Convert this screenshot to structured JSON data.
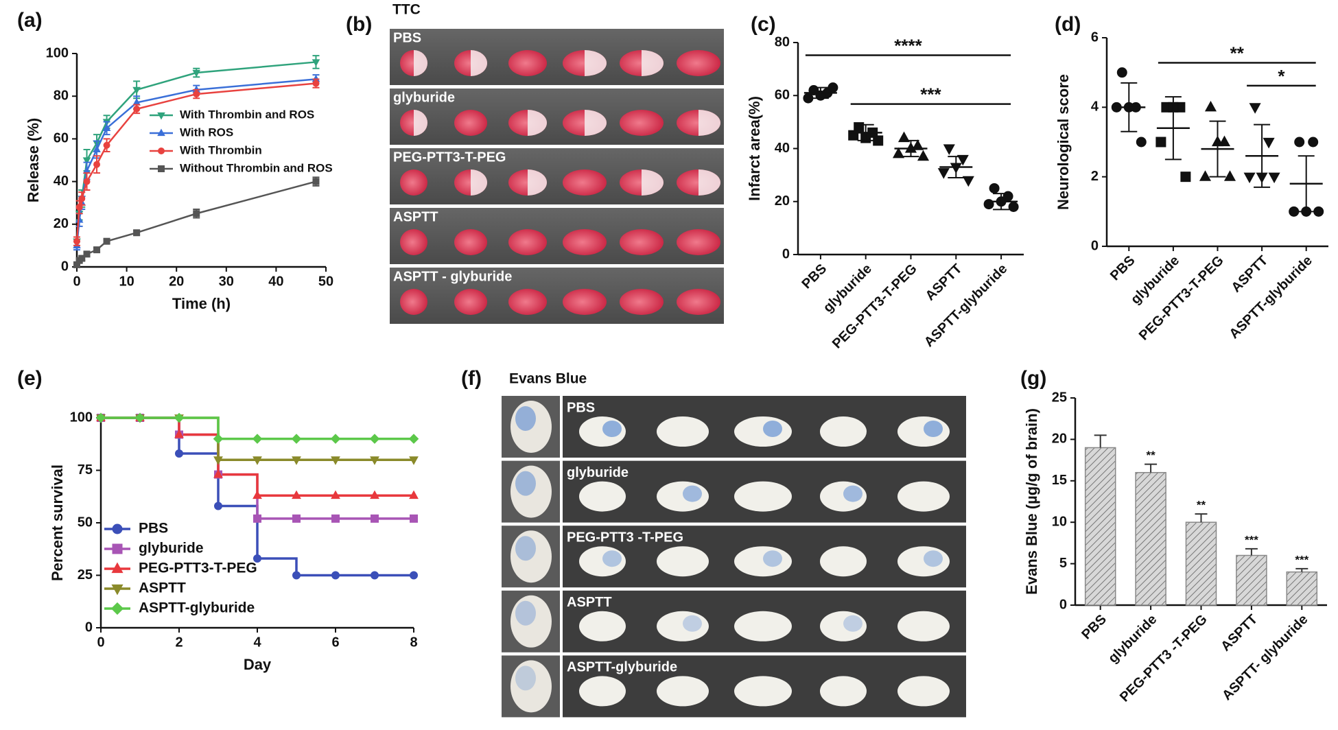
{
  "chart_data": [
    {
      "type": "line",
      "panel_label": "(a)",
      "xlabel": "Time (h)",
      "ylabel": "Release (%)",
      "x": [
        0,
        0.5,
        1,
        2,
        4,
        6,
        12,
        24,
        48
      ],
      "xlim": [
        0,
        50
      ],
      "xticks": [
        0,
        10,
        20,
        30,
        40,
        50
      ],
      "ylim": [
        0,
        100
      ],
      "yticks": [
        0,
        20,
        40,
        60,
        80,
        100
      ],
      "legend": "center right",
      "series": [
        {
          "name": "With Thrombin and ROS",
          "color": "#2fa37c",
          "marker": "triangle-down",
          "values": [
            12,
            25,
            32,
            50,
            58,
            68,
            83,
            91,
            96
          ],
          "errors": [
            2,
            3,
            4,
            5,
            4,
            3,
            4,
            2,
            3
          ]
        },
        {
          "name": "With ROS",
          "color": "#3a6fd8",
          "marker": "triangle",
          "values": [
            10,
            22,
            30,
            45,
            55,
            65,
            77,
            83,
            88
          ],
          "errors": [
            2,
            3,
            3,
            4,
            4,
            3,
            3,
            2,
            2
          ]
        },
        {
          "name": "With Thrombin",
          "color": "#e8423f",
          "marker": "circle",
          "values": [
            12,
            28,
            32,
            40,
            48,
            57,
            74,
            81,
            86
          ],
          "errors": [
            2,
            3,
            3,
            4,
            4,
            3,
            2,
            2,
            2
          ]
        },
        {
          "name": "Without Thrombin and ROS",
          "color": "#555555",
          "marker": "square",
          "values": [
            1,
            3,
            4,
            6,
            8,
            12,
            16,
            25,
            40
          ],
          "errors": [
            1,
            1,
            1,
            1,
            1,
            1,
            1,
            2,
            2
          ]
        }
      ]
    },
    {
      "type": "dot",
      "panel_label": "(c)",
      "ylabel": "Infarct area(%)",
      "categories": [
        "PBS",
        "glyburide",
        "PEG-PTT3-T-PEG",
        "ASPTT",
        "ASPTT-glyburide"
      ],
      "markers": [
        "circle",
        "square",
        "triangle",
        "triangle-down",
        "circle"
      ],
      "groups": [
        [
          62,
          61,
          60,
          59,
          63
        ],
        [
          48,
          46,
          44,
          45,
          43
        ],
        [
          44,
          41,
          40,
          38,
          37
        ],
        [
          40,
          36,
          33,
          31,
          28
        ],
        [
          25,
          22,
          20,
          19,
          18
        ]
      ],
      "means": [
        61,
        46,
        40,
        33,
        20
      ],
      "sds": [
        2,
        3,
        3,
        4,
        3
      ],
      "ylim": [
        0,
        80
      ],
      "yticks": [
        0,
        20,
        40,
        60,
        80
      ],
      "annotations": [
        "****",
        "***"
      ]
    },
    {
      "type": "dot",
      "panel_label": "(d)",
      "ylabel": "Neurological score",
      "categories": [
        "PBS",
        "glyburide",
        "PEG-PTT3-T-PEG",
        "ASPTT",
        "ASPTT-glyburide"
      ],
      "markers": [
        "circle",
        "square",
        "triangle",
        "triangle-down",
        "circle"
      ],
      "groups": [
        [
          5,
          4,
          4,
          4,
          3
        ],
        [
          4,
          4,
          4,
          3,
          2
        ],
        [
          4,
          3,
          3,
          2,
          2
        ],
        [
          4,
          3,
          2,
          2,
          2
        ],
        [
          3,
          3,
          1,
          1,
          1
        ]
      ],
      "means": [
        4,
        3.4,
        2.8,
        2.6,
        1.8
      ],
      "sds": [
        0.7,
        0.9,
        0.8,
        0.9,
        0.8
      ],
      "ylim": [
        0,
        6
      ],
      "yticks": [
        0,
        2,
        4,
        6
      ],
      "annotations": [
        "**",
        "*"
      ]
    },
    {
      "type": "step",
      "panel_label": "(e)",
      "xlabel": "Day",
      "ylabel": "Percent survival",
      "x": [
        0,
        1,
        2,
        3,
        4,
        5,
        6,
        7,
        8
      ],
      "xlim": [
        0,
        8
      ],
      "xticks": [
        0,
        2,
        4,
        6,
        8
      ],
      "ylim": [
        0,
        100
      ],
      "yticks": [
        0,
        25,
        50,
        75,
        100
      ],
      "legend": "lower left",
      "series": [
        {
          "name": "PBS",
          "color": "#3b4fb8",
          "marker": "circle",
          "values": [
            100,
            100,
            83,
            58,
            33,
            25,
            25,
            25,
            25
          ]
        },
        {
          "name": "glyburide",
          "color": "#a855b5",
          "marker": "square",
          "values": [
            100,
            100,
            92,
            73,
            52,
            52,
            52,
            52,
            52
          ]
        },
        {
          "name": "PEG-PTT3-T-PEG",
          "color": "#e8383d",
          "marker": "triangle",
          "values": [
            100,
            100,
            92,
            73,
            63,
            63,
            63,
            63,
            63
          ]
        },
        {
          "name": "ASPTT",
          "color": "#8a8a2a",
          "marker": "triangle-down",
          "values": [
            100,
            100,
            100,
            80,
            80,
            80,
            80,
            80,
            80
          ]
        },
        {
          "name": "ASPTT-glyburide",
          "color": "#5cc84a",
          "marker": "diamond",
          "values": [
            100,
            100,
            100,
            90,
            90,
            90,
            90,
            90,
            90
          ]
        }
      ]
    },
    {
      "type": "bar",
      "panel_label": "(g)",
      "ylabel": "Evans Blue (µg/g of brain)",
      "categories": [
        "PBS",
        "glyburide",
        "PEG-PTT3 -T-PEG",
        "ASPTT",
        "ASPTT- glyburide"
      ],
      "values": [
        19,
        16,
        10,
        6,
        4
      ],
      "errors": [
        1.5,
        1,
        1,
        0.8,
        0.4
      ],
      "significance": [
        null,
        "**",
        "**",
        "***",
        "***"
      ],
      "color": "#a9a9a9",
      "ylim": [
        0,
        25
      ],
      "yticks": [
        0,
        5,
        10,
        15,
        20,
        25
      ]
    }
  ],
  "panel_b": {
    "label": "(b)",
    "title": "TTC",
    "rows": [
      "PBS",
      "glyburide",
      "PEG-PTT3-T-PEG",
      "ASPTT",
      "ASPTT - glyburide"
    ]
  },
  "panel_f": {
    "label": "(f)",
    "title": "Evans Blue",
    "rows": [
      "PBS",
      "glyburide",
      "PEG-PTT3 -T-PEG",
      "ASPTT",
      "ASPTT-glyburide"
    ]
  }
}
